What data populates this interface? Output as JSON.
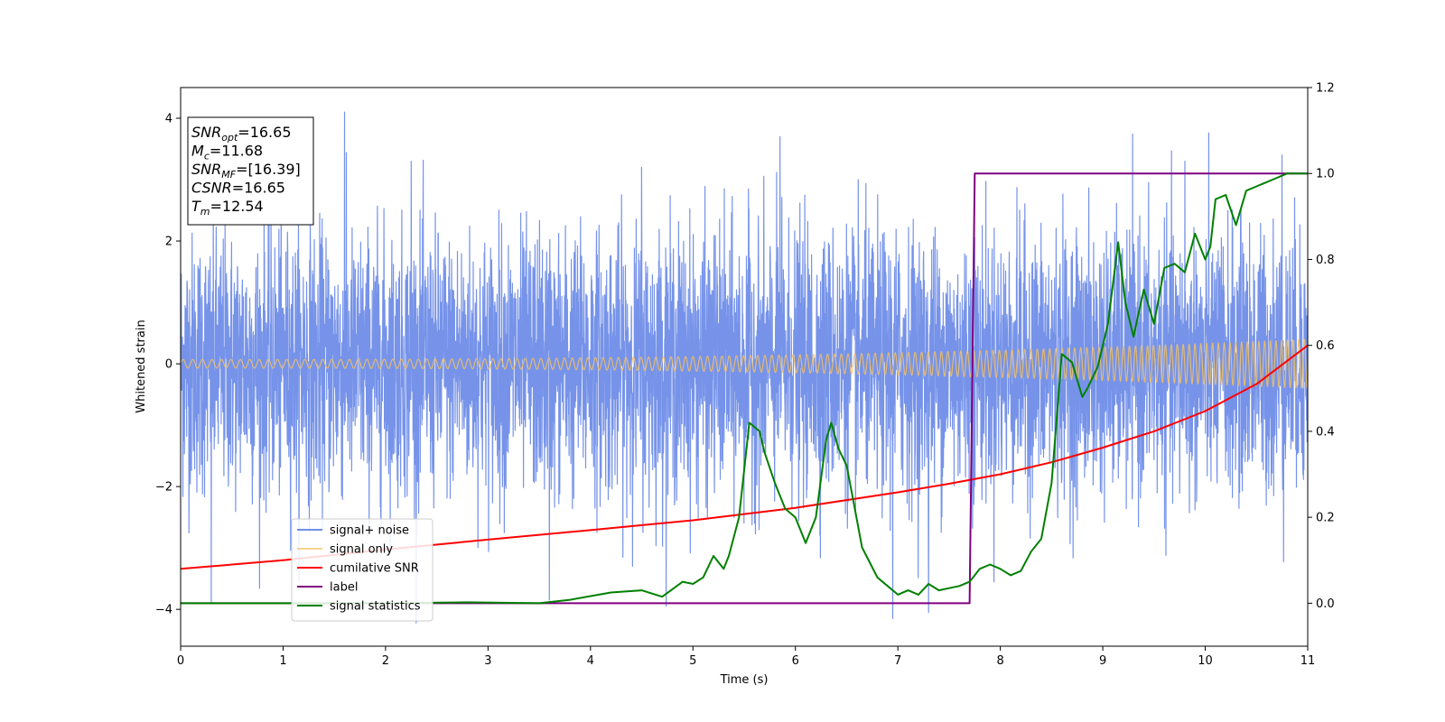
{
  "chart_data": {
    "type": "line",
    "title": "",
    "xlabel": "Time (s)",
    "ylabel": "Whitened strain",
    "xlim": [
      0,
      11
    ],
    "ylim_left": [
      -4.6,
      4.5
    ],
    "ylim_right": [
      -0.1,
      1.2
    ],
    "x_ticks": [
      0,
      1,
      2,
      3,
      4,
      5,
      6,
      7,
      8,
      9,
      10,
      11
    ],
    "y_left_ticks": [
      4,
      2,
      0,
      -2,
      -4
    ],
    "y_right_ticks": [
      1.2,
      1.0,
      0.8,
      0.6,
      0.4,
      0.2,
      0.0
    ],
    "grid": false,
    "legend_position": "lower-left",
    "annotation": {
      "lines": [
        {
          "var": "SNR",
          "sub": "opt",
          "value": "=16.65"
        },
        {
          "var": "M",
          "sub": "c",
          "value": "=11.68"
        },
        {
          "var": "SNR",
          "sub": "MF",
          "value": "=[16.39]"
        },
        {
          "var": "CSNR",
          "sub": "",
          "value": "=16.65"
        },
        {
          "var": "T",
          "sub": "m",
          "value": "=12.54"
        }
      ]
    },
    "series": [
      {
        "name": "signal+ noise",
        "axis": "left",
        "color": "#4169e1",
        "kind": "noise",
        "std": 1.05,
        "spikes": [
          [
            0.3,
            -3.9
          ],
          [
            1.6,
            4.1
          ],
          [
            5.85,
            3.7
          ],
          [
            6.95,
            -4.15
          ],
          [
            7.3,
            -4.05
          ],
          [
            10.75,
            3.4
          ],
          [
            3.6,
            -3.85
          ],
          [
            4.5,
            3.2
          ],
          [
            2.25,
            3.3
          ],
          [
            9.8,
            3.3
          ]
        ]
      },
      {
        "name": "signal only",
        "axis": "left",
        "color": "#f4c060",
        "kind": "chirp",
        "amp_start": 0.07,
        "amp_end": 0.4
      },
      {
        "name": "cumilative SNR",
        "axis": "right",
        "color": "#ff0000",
        "x": [
          0,
          1,
          2,
          3,
          4,
          5,
          6,
          7,
          7.5,
          8,
          8.5,
          9,
          9.5,
          10,
          10.5,
          11
        ],
        "y": [
          0.08,
          0.1,
          0.125,
          0.148,
          0.17,
          0.193,
          0.222,
          0.258,
          0.278,
          0.3,
          0.328,
          0.362,
          0.4,
          0.447,
          0.51,
          0.6
        ]
      },
      {
        "name": "label",
        "axis": "right",
        "color": "#800080",
        "x": [
          0,
          7.7,
          7.75,
          11
        ],
        "y": [
          0,
          0,
          1,
          1
        ]
      },
      {
        "name": "signal statistics",
        "axis": "right",
        "color": "#008000",
        "x": [
          0,
          1,
          2,
          2.8,
          3.5,
          3.8,
          4.2,
          4.5,
          4.7,
          4.9,
          5.0,
          5.1,
          5.2,
          5.3,
          5.35,
          5.45,
          5.55,
          5.65,
          5.7,
          5.8,
          5.9,
          6.0,
          6.1,
          6.2,
          6.3,
          6.35,
          6.42,
          6.5,
          6.58,
          6.65,
          6.8,
          6.9,
          7.0,
          7.1,
          7.2,
          7.3,
          7.4,
          7.5,
          7.6,
          7.7,
          7.8,
          7.9,
          8.0,
          8.1,
          8.2,
          8.3,
          8.4,
          8.5,
          8.6,
          8.7,
          8.8,
          8.85,
          8.95,
          9.05,
          9.15,
          9.22,
          9.3,
          9.4,
          9.5,
          9.6,
          9.7,
          9.8,
          9.9,
          10.0,
          10.05,
          10.1,
          10.2,
          10.3,
          10.4,
          10.5,
          10.6,
          10.7,
          10.8,
          11.0
        ],
        "y": [
          0.0,
          0.0,
          0.0,
          0.002,
          0.0,
          0.008,
          0.025,
          0.03,
          0.015,
          0.05,
          0.045,
          0.06,
          0.11,
          0.08,
          0.11,
          0.2,
          0.42,
          0.4,
          0.35,
          0.28,
          0.22,
          0.2,
          0.14,
          0.2,
          0.38,
          0.42,
          0.36,
          0.32,
          0.22,
          0.13,
          0.06,
          0.04,
          0.02,
          0.03,
          0.02,
          0.045,
          0.03,
          0.035,
          0.04,
          0.05,
          0.08,
          0.09,
          0.08,
          0.065,
          0.075,
          0.12,
          0.15,
          0.28,
          0.58,
          0.56,
          0.48,
          0.5,
          0.55,
          0.65,
          0.84,
          0.7,
          0.62,
          0.73,
          0.65,
          0.78,
          0.79,
          0.77,
          0.86,
          0.8,
          0.83,
          0.94,
          0.95,
          0.88,
          0.96,
          0.97,
          0.98,
          0.99,
          1.0,
          1.0
        ]
      }
    ]
  }
}
